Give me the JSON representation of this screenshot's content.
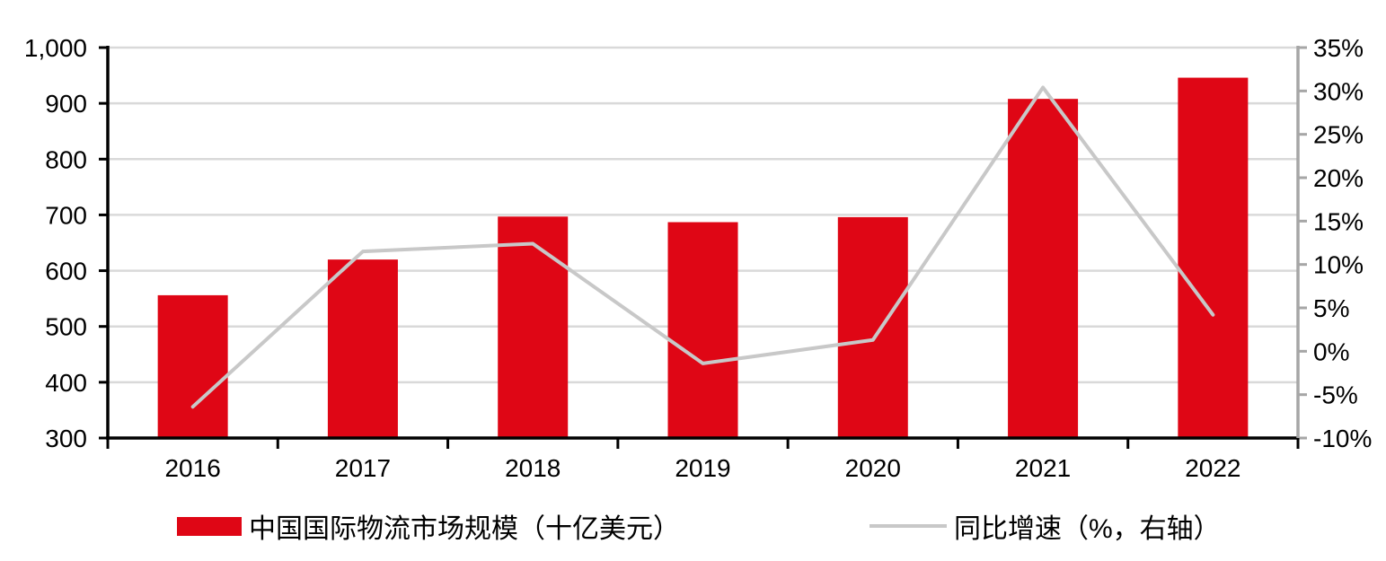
{
  "chart_data": {
    "type": "bar",
    "subtype": "combo-bar-line-dual-axis",
    "title": "",
    "categories": [
      "2016",
      "2017",
      "2018",
      "2019",
      "2020",
      "2021",
      "2022"
    ],
    "series": [
      {
        "name": "中国国际物流市场规模（十亿美元）",
        "type": "bar",
        "axis": "left",
        "values": [
          556,
          620,
          697,
          687,
          696,
          908,
          946
        ]
      },
      {
        "name": "同比增速（%，右轴）",
        "type": "line",
        "axis": "right",
        "values": [
          -6.4,
          11.5,
          12.4,
          -1.4,
          1.3,
          30.4,
          4.2
        ]
      }
    ],
    "left_axis": {
      "min": 300,
      "max": 1000,
      "tick_step": 100,
      "tick_labels": [
        "300",
        "400",
        "500",
        "600",
        "700",
        "800",
        "900",
        "1,000"
      ]
    },
    "right_axis": {
      "min": -10,
      "max": 35,
      "tick_step": 5,
      "tick_labels": [
        "-10%",
        "-5%",
        "0%",
        "5%",
        "10%",
        "15%",
        "20%",
        "25%",
        "30%",
        "35%"
      ]
    },
    "grid": true,
    "legend_position": "bottom"
  },
  "legend": {
    "items": [
      {
        "label": "中国国际物流市场规模（十亿美元）",
        "swatch": "bar"
      },
      {
        "label": "同比增速（%，右轴）",
        "swatch": "line"
      }
    ]
  },
  "colors": {
    "bar": "#DF0615",
    "line": "#C8C8C8",
    "grid": "#D9D9D9",
    "axis_black": "#000000",
    "axis_gray": "#A6A6A6",
    "text": "#000000",
    "background": "#FFFFFF"
  }
}
